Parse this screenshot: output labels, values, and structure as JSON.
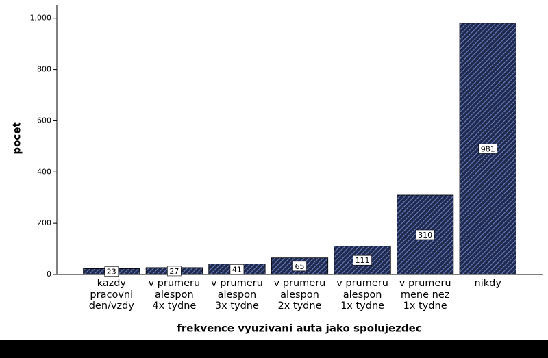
{
  "chart_data": {
    "type": "bar",
    "xlabel": "frekvence vyuzivani auta jako spolujezdec",
    "ylabel": "pocet",
    "categories": [
      "kazdy\npracovni\nden/vzdy",
      "v prumeru\nalespon\n4x tydne",
      "v prumeru\nalespon\n3x tydne",
      "v prumeru\nalespon\n2x tydne",
      "v prumeru\nalespon\n1x tydne",
      "v prumeru\nmene nez\n1x tydne",
      "nikdy"
    ],
    "values": [
      23,
      27,
      41,
      65,
      111,
      310,
      981
    ],
    "color": "#1f2a4d",
    "hatch_color": "#6b7fc4",
    "ylim": [
      0,
      1050
    ],
    "yticks": [
      0,
      200,
      400,
      600,
      800,
      {
        "value": 1000,
        "label": "1,000"
      }
    ],
    "grid": false
  }
}
